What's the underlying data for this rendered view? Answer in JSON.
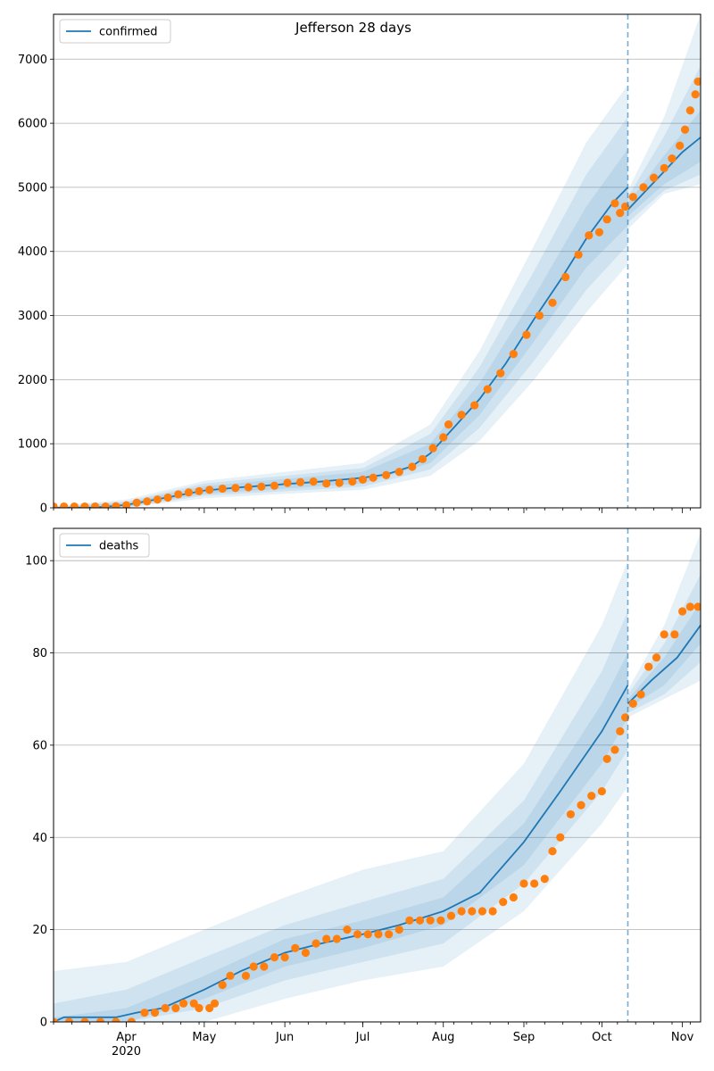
{
  "title": "Jefferson 28 days",
  "colors": {
    "model": "#1f77b4",
    "observed": "#ff7f0e",
    "band": "#1f77b4",
    "forecast_line": "#1f77b4"
  },
  "chart_data": [
    {
      "type": "line",
      "title": "Jefferson 28 days",
      "legend": {
        "entries": [
          "confirmed"
        ],
        "placement": "upper-left"
      },
      "grid": "y",
      "x_ticks": [
        {
          "date": "2020-04-01",
          "label": "Apr",
          "sublabel": ""
        },
        {
          "date": "2020-05-01",
          "label": "May"
        },
        {
          "date": "2020-06-01",
          "label": "Jun"
        },
        {
          "date": "2020-07-01",
          "label": "Jul"
        },
        {
          "date": "2020-08-01",
          "label": "Aug"
        },
        {
          "date": "2020-09-01",
          "label": "Sep"
        },
        {
          "date": "2020-10-01",
          "label": "Oct"
        },
        {
          "date": "2020-11-01",
          "label": "Nov"
        }
      ],
      "x_range": [
        "2020-03-04",
        "2020-11-08"
      ],
      "ylim": [
        0,
        7700
      ],
      "y_ticks": [
        0,
        1000,
        2000,
        3000,
        4000,
        5000,
        6000,
        7000
      ],
      "forecast_date": "2020-10-11",
      "model_fit": [
        [
          "2020-03-04",
          0
        ],
        [
          "2020-03-20",
          5
        ],
        [
          "2020-04-01",
          45
        ],
        [
          "2020-04-15",
          150
        ],
        [
          "2020-05-01",
          270
        ],
        [
          "2020-05-15",
          320
        ],
        [
          "2020-06-01",
          370
        ],
        [
          "2020-06-15",
          410
        ],
        [
          "2020-07-01",
          470
        ],
        [
          "2020-07-10",
          520
        ],
        [
          "2020-07-20",
          650
        ],
        [
          "2020-07-27",
          850
        ],
        [
          "2020-08-05",
          1250
        ],
        [
          "2020-08-15",
          1700
        ],
        [
          "2020-08-25",
          2250
        ],
        [
          "2020-09-05",
          2950
        ],
        [
          "2020-09-15",
          3550
        ],
        [
          "2020-09-25",
          4200
        ],
        [
          "2020-10-05",
          4750
        ],
        [
          "2020-10-11",
          5000
        ]
      ],
      "model_forecast": [
        [
          "2020-10-11",
          4650
        ],
        [
          "2020-10-18",
          4950
        ],
        [
          "2020-10-25",
          5250
        ],
        [
          "2020-11-01",
          5550
        ],
        [
          "2020-11-08",
          5780
        ]
      ],
      "band_fit": [
        [
          [
            "2020-03-04",
            0,
            10
          ],
          [
            "2020-04-01",
            20,
            80
          ],
          [
            "2020-05-01",
            220,
            340
          ],
          [
            "2020-06-01",
            300,
            450
          ],
          [
            "2020-07-01",
            380,
            560
          ],
          [
            "2020-07-27",
            700,
            1000
          ],
          [
            "2020-08-15",
            1450,
            1950
          ],
          [
            "2020-09-05",
            2600,
            3300
          ],
          [
            "2020-09-25",
            3750,
            4700
          ],
          [
            "2020-10-11",
            4400,
            5600
          ]
        ],
        [
          [
            "2020-03-04",
            0,
            20
          ],
          [
            "2020-04-01",
            10,
            100
          ],
          [
            "2020-05-01",
            190,
            380
          ],
          [
            "2020-06-01",
            260,
            500
          ],
          [
            "2020-07-01",
            330,
            620
          ],
          [
            "2020-07-27",
            600,
            1150
          ],
          [
            "2020-08-15",
            1250,
            2200
          ],
          [
            "2020-09-05",
            2300,
            3700
          ],
          [
            "2020-09-25",
            3400,
            5200
          ],
          [
            "2020-10-11",
            4100,
            6100
          ]
        ],
        [
          [
            "2020-03-04",
            0,
            30
          ],
          [
            "2020-04-01",
            0,
            130
          ],
          [
            "2020-05-01",
            150,
            420
          ],
          [
            "2020-06-01",
            220,
            560
          ],
          [
            "2020-07-01",
            280,
            700
          ],
          [
            "2020-07-27",
            500,
            1300
          ],
          [
            "2020-08-15",
            1050,
            2450
          ],
          [
            "2020-09-05",
            2000,
            4100
          ],
          [
            "2020-09-25",
            3050,
            5700
          ],
          [
            "2020-10-11",
            3800,
            6600
          ]
        ]
      ],
      "band_forecast": [
        [
          [
            "2020-10-11",
            4550,
            4750
          ],
          [
            "2020-10-25",
            5050,
            5500
          ],
          [
            "2020-11-08",
            5400,
            6200
          ]
        ],
        [
          [
            "2020-10-11",
            4450,
            4850
          ],
          [
            "2020-10-25",
            4950,
            5800
          ],
          [
            "2020-11-08",
            5200,
            6900
          ]
        ],
        [
          [
            "2020-10-11",
            4350,
            4950
          ],
          [
            "2020-10-25",
            4900,
            6100
          ],
          [
            "2020-11-08",
            5050,
            7700
          ]
        ]
      ],
      "observed": [
        [
          "2020-03-04",
          20
        ],
        [
          "2020-03-08",
          20
        ],
        [
          "2020-03-12",
          20
        ],
        [
          "2020-03-16",
          20
        ],
        [
          "2020-03-20",
          20
        ],
        [
          "2020-03-24",
          20
        ],
        [
          "2020-03-28",
          25
        ],
        [
          "2020-04-01",
          40
        ],
        [
          "2020-04-05",
          80
        ],
        [
          "2020-04-09",
          100
        ],
        [
          "2020-04-13",
          130
        ],
        [
          "2020-04-17",
          160
        ],
        [
          "2020-04-21",
          210
        ],
        [
          "2020-04-25",
          240
        ],
        [
          "2020-04-29",
          260
        ],
        [
          "2020-05-03",
          280
        ],
        [
          "2020-05-08",
          300
        ],
        [
          "2020-05-13",
          310
        ],
        [
          "2020-05-18",
          320
        ],
        [
          "2020-05-23",
          330
        ],
        [
          "2020-05-28",
          345
        ],
        [
          "2020-06-02",
          390
        ],
        [
          "2020-06-07",
          400
        ],
        [
          "2020-06-12",
          410
        ],
        [
          "2020-06-17",
          380
        ],
        [
          "2020-06-22",
          390
        ],
        [
          "2020-06-27",
          410
        ],
        [
          "2020-07-01",
          440
        ],
        [
          "2020-07-05",
          470
        ],
        [
          "2020-07-10",
          510
        ],
        [
          "2020-07-15",
          560
        ],
        [
          "2020-07-20",
          640
        ],
        [
          "2020-07-24",
          760
        ],
        [
          "2020-07-28",
          930
        ],
        [
          "2020-08-01",
          1100
        ],
        [
          "2020-08-03",
          1300
        ],
        [
          "2020-08-08",
          1450
        ],
        [
          "2020-08-13",
          1600
        ],
        [
          "2020-08-18",
          1850
        ],
        [
          "2020-08-23",
          2100
        ],
        [
          "2020-08-28",
          2400
        ],
        [
          "2020-09-02",
          2700
        ],
        [
          "2020-09-07",
          3000
        ],
        [
          "2020-09-12",
          3200
        ],
        [
          "2020-09-17",
          3600
        ],
        [
          "2020-09-22",
          3950
        ],
        [
          "2020-09-26",
          4250
        ],
        [
          "2020-09-30",
          4300
        ],
        [
          "2020-10-03",
          4500
        ],
        [
          "2020-10-06",
          4750
        ],
        [
          "2020-10-08",
          4600
        ],
        [
          "2020-10-10",
          4700
        ],
        [
          "2020-10-13",
          4850
        ],
        [
          "2020-10-17",
          5000
        ],
        [
          "2020-10-21",
          5150
        ],
        [
          "2020-10-25",
          5300
        ],
        [
          "2020-10-28",
          5450
        ],
        [
          "2020-10-31",
          5650
        ],
        [
          "2020-11-02",
          5900
        ],
        [
          "2020-11-04",
          6200
        ],
        [
          "2020-11-06",
          6450
        ],
        [
          "2020-11-07",
          6650
        ]
      ]
    },
    {
      "type": "line",
      "legend": {
        "entries": [
          "deaths"
        ],
        "placement": "upper-left"
      },
      "grid": "y",
      "x_ticks": [
        {
          "date": "2020-04-01",
          "label": "Apr",
          "sublabel": "2020"
        },
        {
          "date": "2020-05-01",
          "label": "May"
        },
        {
          "date": "2020-06-01",
          "label": "Jun"
        },
        {
          "date": "2020-07-01",
          "label": "Jul"
        },
        {
          "date": "2020-08-01",
          "label": "Aug"
        },
        {
          "date": "2020-09-01",
          "label": "Sep"
        },
        {
          "date": "2020-10-01",
          "label": "Oct"
        },
        {
          "date": "2020-11-01",
          "label": "Nov"
        }
      ],
      "x_range": [
        "2020-03-04",
        "2020-11-08"
      ],
      "ylim": [
        0,
        107
      ],
      "y_ticks": [
        0,
        20,
        40,
        60,
        80,
        100
      ],
      "forecast_date": "2020-10-11",
      "model_fit": [
        [
          "2020-03-04",
          0
        ],
        [
          "2020-03-08",
          1
        ],
        [
          "2020-03-28",
          1
        ],
        [
          "2020-04-05",
          2
        ],
        [
          "2020-04-15",
          3
        ],
        [
          "2020-05-01",
          7
        ],
        [
          "2020-05-15",
          11
        ],
        [
          "2020-06-01",
          15
        ],
        [
          "2020-06-15",
          17
        ],
        [
          "2020-07-01",
          19
        ],
        [
          "2020-07-15",
          21
        ],
        [
          "2020-08-01",
          24
        ],
        [
          "2020-08-15",
          28
        ],
        [
          "2020-09-01",
          39
        ],
        [
          "2020-09-15",
          50
        ],
        [
          "2020-10-01",
          63
        ],
        [
          "2020-10-11",
          73
        ]
      ],
      "model_forecast": [
        [
          "2020-10-11",
          69
        ],
        [
          "2020-10-20",
          74
        ],
        [
          "2020-10-30",
          79
        ],
        [
          "2020-11-08",
          86
        ]
      ],
      "band_fit": [
        [
          [
            "2020-03-04",
            0,
            1
          ],
          [
            "2020-04-01",
            0,
            3
          ],
          [
            "2020-05-01",
            5,
            10
          ],
          [
            "2020-06-01",
            12,
            18
          ],
          [
            "2020-07-01",
            16,
            22
          ],
          [
            "2020-08-01",
            21,
            27
          ],
          [
            "2020-09-01",
            34,
            43
          ],
          [
            "2020-10-01",
            56,
            69
          ],
          [
            "2020-10-11",
            66,
            80
          ]
        ],
        [
          [
            "2020-03-04",
            0,
            4
          ],
          [
            "2020-04-01",
            0,
            7
          ],
          [
            "2020-05-01",
            3,
            14
          ],
          [
            "2020-06-01",
            9,
            21
          ],
          [
            "2020-07-01",
            13,
            26
          ],
          [
            "2020-08-01",
            17,
            31
          ],
          [
            "2020-09-01",
            30,
            48
          ],
          [
            "2020-10-01",
            50,
            76
          ],
          [
            "2020-10-11",
            59,
            89
          ]
        ],
        [
          [
            "2020-03-04",
            0,
            11
          ],
          [
            "2020-04-01",
            0,
            13
          ],
          [
            "2020-05-01",
            0,
            20
          ],
          [
            "2020-06-01",
            5,
            27
          ],
          [
            "2020-07-01",
            9,
            33
          ],
          [
            "2020-08-01",
            12,
            37
          ],
          [
            "2020-09-01",
            24,
            56
          ],
          [
            "2020-10-01",
            43,
            86
          ],
          [
            "2020-10-11",
            51,
            100
          ]
        ]
      ],
      "band_forecast": [
        [
          [
            "2020-10-11",
            68,
            70
          ],
          [
            "2020-10-25",
            73,
            79
          ],
          [
            "2020-11-08",
            82,
            91
          ]
        ],
        [
          [
            "2020-10-11",
            67,
            71
          ],
          [
            "2020-10-25",
            71,
            82
          ],
          [
            "2020-11-08",
            78,
            97
          ]
        ],
        [
          [
            "2020-10-11",
            66,
            72
          ],
          [
            "2020-10-25",
            70,
            86
          ],
          [
            "2020-11-08",
            74,
            106
          ]
        ]
      ],
      "observed": [
        [
          "2020-03-04",
          0
        ],
        [
          "2020-03-10",
          0
        ],
        [
          "2020-03-16",
          0
        ],
        [
          "2020-03-22",
          0
        ],
        [
          "2020-03-28",
          0
        ],
        [
          "2020-04-03",
          0
        ],
        [
          "2020-04-08",
          2
        ],
        [
          "2020-04-12",
          2
        ],
        [
          "2020-04-16",
          3
        ],
        [
          "2020-04-20",
          3
        ],
        [
          "2020-04-23",
          4
        ],
        [
          "2020-04-27",
          4
        ],
        [
          "2020-04-29",
          3
        ],
        [
          "2020-05-03",
          3
        ],
        [
          "2020-05-05",
          4
        ],
        [
          "2020-05-08",
          8
        ],
        [
          "2020-05-11",
          10
        ],
        [
          "2020-05-17",
          10
        ],
        [
          "2020-05-20",
          12
        ],
        [
          "2020-05-24",
          12
        ],
        [
          "2020-05-28",
          14
        ],
        [
          "2020-06-01",
          14
        ],
        [
          "2020-06-05",
          16
        ],
        [
          "2020-06-09",
          15
        ],
        [
          "2020-06-13",
          17
        ],
        [
          "2020-06-17",
          18
        ],
        [
          "2020-06-21",
          18
        ],
        [
          "2020-06-25",
          20
        ],
        [
          "2020-06-29",
          19
        ],
        [
          "2020-07-03",
          19
        ],
        [
          "2020-07-07",
          19
        ],
        [
          "2020-07-11",
          19
        ],
        [
          "2020-07-15",
          20
        ],
        [
          "2020-07-19",
          22
        ],
        [
          "2020-07-23",
          22
        ],
        [
          "2020-07-27",
          22
        ],
        [
          "2020-07-31",
          22
        ],
        [
          "2020-08-04",
          23
        ],
        [
          "2020-08-08",
          24
        ],
        [
          "2020-08-12",
          24
        ],
        [
          "2020-08-16",
          24
        ],
        [
          "2020-08-20",
          24
        ],
        [
          "2020-08-24",
          26
        ],
        [
          "2020-08-28",
          27
        ],
        [
          "2020-09-01",
          30
        ],
        [
          "2020-09-05",
          30
        ],
        [
          "2020-09-09",
          31
        ],
        [
          "2020-09-12",
          37
        ],
        [
          "2020-09-15",
          40
        ],
        [
          "2020-09-19",
          45
        ],
        [
          "2020-09-23",
          47
        ],
        [
          "2020-09-27",
          49
        ],
        [
          "2020-10-01",
          50
        ],
        [
          "2020-10-03",
          57
        ],
        [
          "2020-10-06",
          59
        ],
        [
          "2020-10-08",
          63
        ],
        [
          "2020-10-10",
          66
        ],
        [
          "2020-10-13",
          69
        ],
        [
          "2020-10-16",
          71
        ],
        [
          "2020-10-19",
          77
        ],
        [
          "2020-10-22",
          79
        ],
        [
          "2020-10-25",
          84
        ],
        [
          "2020-10-29",
          84
        ],
        [
          "2020-11-01",
          89
        ],
        [
          "2020-11-04",
          90
        ],
        [
          "2020-11-07",
          90
        ]
      ]
    }
  ]
}
